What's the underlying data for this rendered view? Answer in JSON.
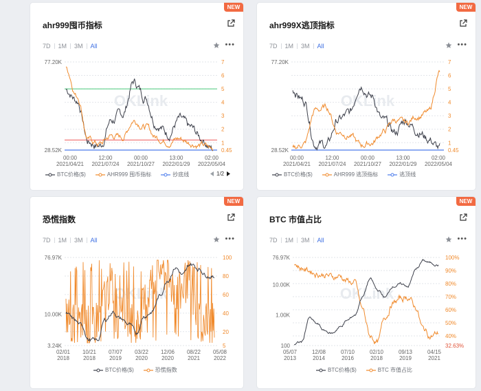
{
  "colors": {
    "btc": "#3c3f4a",
    "orange": "#f08a2c",
    "green": "#48c97a",
    "red": "#ef5a5a",
    "blue": "#4b7bec",
    "accent": "#3d6fe3",
    "badge": "#f26a42"
  },
  "icons": {
    "external": "external-link-icon",
    "star": "star-icon",
    "more": "more-icon"
  },
  "cards": [
    {
      "badge": "NEW",
      "title": "ahr999囤币指标",
      "tabs": [
        "7D",
        "1M",
        "3M",
        "All"
      ],
      "active_tab": "All",
      "more": "•••",
      "watermark": "OKLink",
      "y_left_top": "77.20K",
      "y_left_bottom": "28.52K",
      "y_right": [
        "7",
        "6",
        "5",
        "4",
        "3",
        "2",
        "1",
        "0.45"
      ],
      "x_ticks": [
        [
          "00:00",
          "2021/04/21"
        ],
        [
          "12:00",
          "2021/07/24"
        ],
        [
          "00:00",
          "2021/10/27"
        ],
        [
          "13:00",
          "2022/01/29"
        ],
        [
          "02:00",
          "2022/05/04"
        ]
      ],
      "legend": [
        "BTC价格($)",
        "AHR999 囤币指标",
        "抄底线"
      ],
      "pager": "1/2"
    },
    {
      "badge": "NEW",
      "title": "ahr999X逃顶指标",
      "tabs": [
        "7D",
        "1M",
        "3M",
        "All"
      ],
      "active_tab": "All",
      "more": "•••",
      "watermark": "OKLink",
      "y_left_top": "77.20K",
      "y_left_bottom": "28.52K",
      "y_right": [
        "7",
        "6",
        "5",
        "4",
        "3",
        "2",
        "1",
        "0.45"
      ],
      "x_ticks": [
        [
          "00:00",
          "2021/04/21"
        ],
        [
          "12:00",
          "2021/07/24"
        ],
        [
          "00:00",
          "2021/10/27"
        ],
        [
          "13:00",
          "2022/01/29"
        ],
        [
          "02:00",
          "2022/05/04"
        ]
      ],
      "legend": [
        "BTC价格($)",
        "AHR999 逃顶指标",
        "逃顶线"
      ]
    },
    {
      "badge": "NEW",
      "title": "恐慌指数",
      "tabs": [
        "7D",
        "1M",
        "3M",
        "All"
      ],
      "active_tab": "All",
      "more": "•••",
      "watermark": "OKLink",
      "y_left": [
        "76.97K",
        "10.00K",
        "3.24K"
      ],
      "y_right": [
        "100",
        "80",
        "60",
        "40",
        "20",
        "5"
      ],
      "x_ticks": [
        [
          "02/01",
          "2018"
        ],
        [
          "10/21",
          "2018"
        ],
        [
          "07/07",
          "2019"
        ],
        [
          "03/22",
          "2020"
        ],
        [
          "12/06",
          "2020"
        ],
        [
          "08/22",
          "2021"
        ],
        [
          "05/08",
          "2022"
        ]
      ],
      "legend": [
        "BTC价格($)",
        "恐慌指数"
      ]
    },
    {
      "badge": "NEW",
      "title": "BTC 市值占比",
      "tabs": [
        "7D",
        "1M",
        "3M",
        "All"
      ],
      "active_tab": "All",
      "more": "•••",
      "watermark": "OKLink",
      "y_left": [
        "76.97K",
        "10.00K",
        "1.00K",
        "100"
      ],
      "y_right": [
        "100%",
        "90%",
        "80%",
        "70%",
        "60%",
        "50%",
        "40%",
        "32.63%"
      ],
      "x_ticks": [
        [
          "05/07",
          "2013"
        ],
        [
          "12/08",
          "2014"
        ],
        [
          "07/10",
          "2016"
        ],
        [
          "02/10",
          "2018"
        ],
        [
          "09/13",
          "2019"
        ],
        [
          "04/15",
          "2021"
        ]
      ],
      "legend": [
        "BTC价格($)",
        "BTC 市值占比"
      ]
    }
  ],
  "chart_data": [
    {
      "type": "line",
      "title": "ahr999囤币指标",
      "x": [
        "2021/04/21",
        "2021/07/24",
        "2021/10/27",
        "2022/01/29",
        "2022/05/04"
      ],
      "series": [
        {
          "name": "BTC价格($)",
          "axis": "left",
          "values": [
            56000,
            32000,
            61000,
            38000,
            29000
          ]
        },
        {
          "name": "AHR999 囤币指标",
          "axis": "right",
          "values": [
            5.8,
            1.0,
            2.6,
            1.0,
            0.45
          ]
        },
        {
          "name": "抄底线",
          "axis": "right",
          "values": [
            0.45,
            0.45,
            0.45,
            0.45,
            0.45
          ]
        }
      ],
      "reference_lines": [
        5,
        1.2
      ],
      "ylim_left": [
        28520,
        77200
      ],
      "ylim_right": [
        0.45,
        7
      ]
    },
    {
      "type": "line",
      "title": "ahr999X逃顶指标",
      "x": [
        "2021/04/21",
        "2021/07/24",
        "2021/10/27",
        "2022/01/29",
        "2022/05/04"
      ],
      "series": [
        {
          "name": "BTC价格($)",
          "axis": "left",
          "values": [
            56000,
            32000,
            61000,
            38000,
            29000
          ]
        },
        {
          "name": "AHR999 逃顶指标",
          "axis": "right",
          "values": [
            0.6,
            3.5,
            1.0,
            3.2,
            6.2
          ]
        },
        {
          "name": "逃顶线",
          "axis": "right",
          "values": [
            0.45,
            0.45,
            0.45,
            0.45,
            0.45
          ]
        }
      ],
      "ylim_left": [
        28520,
        77200
      ],
      "ylim_right": [
        0.45,
        7
      ]
    },
    {
      "type": "line",
      "title": "恐慌指数",
      "x": [
        "2018/02/01",
        "2018/10/21",
        "2019/07/07",
        "2020/03/22",
        "2020/12/06",
        "2021/08/22",
        "2022/05/08"
      ],
      "series": [
        {
          "name": "BTC价格($)",
          "axis": "left",
          "values": [
            9000,
            6500,
            11000,
            6000,
            19000,
            48000,
            36000
          ]
        },
        {
          "name": "恐慌指数",
          "axis": "right",
          "values": [
            40,
            20,
            75,
            12,
            90,
            70,
            25
          ]
        }
      ],
      "ylim_left": [
        3240,
        76970
      ],
      "ylim_right": [
        5,
        100
      ]
    },
    {
      "type": "line",
      "title": "BTC 市值占比",
      "x": [
        "2013/05/07",
        "2014/12/08",
        "2016/07/10",
        "2018/02/10",
        "2019/09/13",
        "2021/04/15"
      ],
      "series": [
        {
          "name": "BTC价格($)",
          "axis": "left",
          "values": [
            120,
            380,
            650,
            8000,
            10000,
            60000
          ]
        },
        {
          "name": "BTC 市值占比",
          "axis": "right",
          "values": [
            95,
            90,
            85,
            38,
            68,
            45
          ]
        }
      ],
      "ylim_left": [
        100,
        76970
      ],
      "ylim_right": [
        32.63,
        100
      ]
    }
  ]
}
